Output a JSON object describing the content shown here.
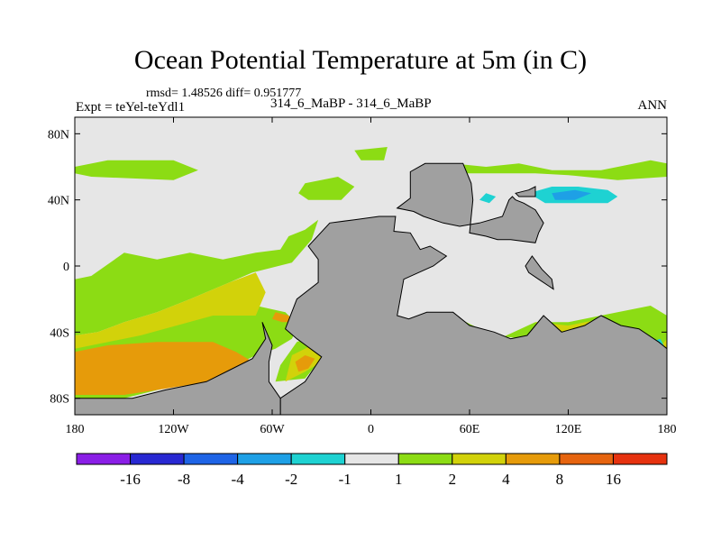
{
  "chart_data": {
    "type": "contour_map",
    "title": "Ocean Potential Temperature at 5m (in C)",
    "stats_text": "rmsd= 1.48526 diff= 0.951777",
    "left_label": "Expt = teYel-teYdl1",
    "center_label": "314_6_MaBP - 314_6_MaBP",
    "right_label": "ANN",
    "x_ticks": [
      {
        "value": -180,
        "label": "180"
      },
      {
        "value": -120,
        "label": "120W"
      },
      {
        "value": -60,
        "label": "60W"
      },
      {
        "value": 0,
        "label": "0"
      },
      {
        "value": 60,
        "label": "60E"
      },
      {
        "value": 120,
        "label": "120E"
      },
      {
        "value": 180,
        "label": "180"
      }
    ],
    "y_ticks": [
      {
        "value": 80,
        "label": "80N"
      },
      {
        "value": 40,
        "label": "40N"
      },
      {
        "value": 0,
        "label": "0"
      },
      {
        "value": -40,
        "label": "40S"
      },
      {
        "value": -80,
        "label": "80S"
      }
    ],
    "xlim": [
      -180,
      180
    ],
    "ylim": [
      -90,
      90
    ],
    "levels": [
      -16,
      -8,
      -4,
      -2,
      -1,
      1,
      2,
      4,
      8,
      16
    ],
    "colorbar_labels": [
      "-16",
      "-8",
      "-4",
      "-2",
      "-1",
      "1",
      "2",
      "4",
      "8",
      "16"
    ],
    "colors": [
      "#8a1ee6",
      "#2828d2",
      "#1e64e6",
      "#1ea0e6",
      "#1ed2d2",
      "#e6e6e6",
      "#8cdc14",
      "#d2d20a",
      "#e69b0a",
      "#e6640f",
      "#e6320f"
    ],
    "land_color": "#a0a0a0",
    "ocean_bg_color": "#e6e6e6",
    "land": [
      [
        [
          -55,
          -93
        ],
        [
          -55,
          -80
        ],
        [
          -40,
          -70
        ],
        [
          -30,
          -55
        ],
        [
          -45,
          -44
        ],
        [
          -52,
          -38
        ],
        [
          -45,
          -20
        ],
        [
          -32,
          -10
        ],
        [
          -32,
          4
        ],
        [
          -38,
          12
        ],
        [
          -25,
          26
        ],
        [
          -10,
          28
        ],
        [
          5,
          30
        ],
        [
          15,
          30
        ],
        [
          14,
          21
        ],
        [
          24,
          20
        ],
        [
          30,
          10
        ],
        [
          36,
          12
        ],
        [
          46,
          6
        ],
        [
          38,
          0
        ],
        [
          20,
          -8
        ],
        [
          16,
          -30
        ],
        [
          23,
          -32
        ],
        [
          34,
          -28
        ],
        [
          50,
          -28
        ],
        [
          60,
          -36
        ],
        [
          75,
          -40
        ],
        [
          85,
          -44
        ],
        [
          95,
          -42
        ],
        [
          105,
          -30
        ],
        [
          116,
          -40
        ],
        [
          130,
          -36
        ],
        [
          140,
          -30
        ],
        [
          152,
          -36
        ],
        [
          163,
          -38
        ],
        [
          175,
          -46
        ],
        [
          180,
          -50
        ],
        [
          180,
          -93
        ]
      ],
      [
        [
          16,
          35
        ],
        [
          24,
          41
        ],
        [
          24,
          57
        ],
        [
          33,
          62
        ],
        [
          44,
          62
        ],
        [
          56,
          62
        ],
        [
          61,
          50
        ],
        [
          62,
          40
        ],
        [
          60,
          20
        ],
        [
          70,
          18
        ],
        [
          77,
          16
        ],
        [
          85,
          16
        ],
        [
          100,
          14
        ],
        [
          102,
          20
        ],
        [
          105,
          26
        ],
        [
          100,
          34
        ],
        [
          93,
          38
        ],
        [
          88,
          40
        ],
        [
          86,
          42
        ],
        [
          84,
          40
        ],
        [
          80,
          30
        ],
        [
          66,
          26
        ],
        [
          54,
          24
        ],
        [
          44,
          26
        ],
        [
          32,
          30
        ],
        [
          26,
          33
        ]
      ],
      [
        [
          88,
          44
        ],
        [
          96,
          46
        ],
        [
          100,
          48
        ],
        [
          100,
          42
        ],
        [
          90,
          42
        ]
      ],
      [
        [
          94,
          0
        ],
        [
          98,
          6
        ],
        [
          104,
          -2
        ],
        [
          110,
          -8
        ],
        [
          111,
          -14
        ],
        [
          108,
          -12
        ],
        [
          102,
          -8
        ],
        [
          96,
          -4
        ]
      ],
      [
        [
          -66,
          -34
        ],
        [
          -64,
          -44
        ],
        [
          -72,
          -56
        ],
        [
          -86,
          -63
        ],
        [
          -100,
          -70
        ],
        [
          -125,
          -75
        ],
        [
          -145,
          -80
        ],
        [
          -180,
          -80
        ],
        [
          -180,
          -93
        ],
        [
          -55,
          -93
        ],
        [
          -55,
          -80
        ],
        [
          -62,
          -70
        ],
        [
          -62,
          -58
        ],
        [
          -60,
          -48
        ]
      ]
    ],
    "contours": [
      {
        "bin": 6,
        "points": [
          [
            -180,
            60
          ],
          [
            -160,
            64
          ],
          [
            -120,
            64
          ],
          [
            -105,
            58
          ],
          [
            -120,
            52
          ],
          [
            -170,
            54
          ],
          [
            -180,
            56
          ]
        ]
      },
      {
        "bin": 6,
        "points": [
          [
            -40,
            50
          ],
          [
            -20,
            54
          ],
          [
            -10,
            48
          ],
          [
            -18,
            40
          ],
          [
            -38,
            40
          ],
          [
            -44,
            44
          ]
        ]
      },
      {
        "bin": 6,
        "points": [
          [
            -180,
            -8
          ],
          [
            -170,
            -6
          ],
          [
            -150,
            8
          ],
          [
            -130,
            4
          ],
          [
            -110,
            8
          ],
          [
            -90,
            4
          ],
          [
            -70,
            8
          ],
          [
            -55,
            10
          ],
          [
            -50,
            18
          ],
          [
            -40,
            22
          ],
          [
            -32,
            28
          ],
          [
            -36,
            16
          ],
          [
            -48,
            2
          ],
          [
            -72,
            -4
          ],
          [
            -86,
            -10
          ],
          [
            -110,
            -20
          ],
          [
            -130,
            -28
          ],
          [
            -150,
            -34
          ],
          [
            -166,
            -40
          ],
          [
            -180,
            -42
          ]
        ]
      },
      {
        "bin": 6,
        "points": [
          [
            -180,
            -48
          ],
          [
            -140,
            -40
          ],
          [
            -96,
            -28
          ],
          [
            -70,
            -24
          ],
          [
            -52,
            -28
          ],
          [
            -44,
            -36
          ],
          [
            -48,
            -44
          ],
          [
            -58,
            -50
          ],
          [
            -70,
            -54
          ],
          [
            -90,
            -64
          ],
          [
            -118,
            -72
          ],
          [
            -150,
            -80
          ],
          [
            -180,
            -80
          ]
        ]
      },
      {
        "bin": 6,
        "points": [
          [
            -58,
            -70
          ],
          [
            -40,
            -68
          ],
          [
            -30,
            -56
          ],
          [
            -20,
            -50
          ],
          [
            -18,
            -42
          ],
          [
            -30,
            -40
          ],
          [
            -45,
            -46
          ],
          [
            -55,
            -60
          ]
        ]
      },
      {
        "bin": 6,
        "points": [
          [
            20,
            -34
          ],
          [
            40,
            -34
          ],
          [
            60,
            -38
          ],
          [
            78,
            -44
          ],
          [
            100,
            -34
          ],
          [
            120,
            -34
          ],
          [
            150,
            -28
          ],
          [
            170,
            -24
          ],
          [
            180,
            -30
          ],
          [
            180,
            -52
          ],
          [
            165,
            -40
          ],
          [
            150,
            -38
          ],
          [
            130,
            -38
          ],
          [
            116,
            -42
          ],
          [
            104,
            -32
          ],
          [
            94,
            -44
          ],
          [
            74,
            -42
          ],
          [
            50,
            -30
          ],
          [
            30,
            -30
          ]
        ]
      },
      {
        "bin": 6,
        "points": [
          [
            50,
            62
          ],
          [
            70,
            60
          ],
          [
            90,
            62
          ],
          [
            110,
            58
          ],
          [
            140,
            58
          ],
          [
            170,
            64
          ],
          [
            180,
            62
          ],
          [
            180,
            54
          ],
          [
            150,
            52
          ],
          [
            120,
            55
          ],
          [
            100,
            56
          ],
          [
            74,
            56
          ],
          [
            56,
            56
          ]
        ]
      },
      {
        "bin": 6,
        "points": [
          [
            -10,
            70
          ],
          [
            10,
            72
          ],
          [
            8,
            64
          ],
          [
            -6,
            64
          ]
        ]
      },
      {
        "bin": 7,
        "points": [
          [
            -180,
            -42
          ],
          [
            -166,
            -40
          ],
          [
            -150,
            -34
          ],
          [
            -130,
            -28
          ],
          [
            -110,
            -20
          ],
          [
            -86,
            -10
          ],
          [
            -70,
            -4
          ],
          [
            -64,
            -16
          ],
          [
            -70,
            -30
          ],
          [
            -96,
            -30
          ],
          [
            -140,
            -42
          ],
          [
            -180,
            -50
          ]
        ]
      },
      {
        "bin": 7,
        "points": [
          [
            100,
            -34
          ],
          [
            120,
            -36
          ],
          [
            140,
            -32
          ],
          [
            150,
            -36
          ],
          [
            145,
            -42
          ],
          [
            130,
            -42
          ],
          [
            116,
            -44
          ],
          [
            104,
            -40
          ]
        ]
      },
      {
        "bin": 7,
        "points": [
          [
            175,
            -50
          ],
          [
            180,
            -44
          ],
          [
            180,
            -66
          ],
          [
            176,
            -60
          ]
        ]
      },
      {
        "bin": 7,
        "points": [
          [
            -52,
            -70
          ],
          [
            -40,
            -64
          ],
          [
            -30,
            -58
          ],
          [
            -26,
            -50
          ],
          [
            -36,
            -48
          ],
          [
            -48,
            -54
          ]
        ]
      },
      {
        "bin": 8,
        "points": [
          [
            -180,
            -52
          ],
          [
            -160,
            -48
          ],
          [
            -130,
            -46
          ],
          [
            -110,
            -46
          ],
          [
            -96,
            -46
          ],
          [
            -82,
            -52
          ],
          [
            -72,
            -58
          ],
          [
            -80,
            -66
          ],
          [
            -98,
            -70
          ],
          [
            -124,
            -74
          ],
          [
            -150,
            -78
          ],
          [
            -180,
            -78
          ]
        ]
      },
      {
        "bin": 8,
        "points": [
          [
            -46,
            -58
          ],
          [
            -40,
            -54
          ],
          [
            -34,
            -56
          ],
          [
            -38,
            -62
          ],
          [
            -44,
            -64
          ]
        ]
      },
      {
        "bin": 8,
        "points": [
          [
            -58,
            -28
          ],
          [
            -50,
            -30
          ],
          [
            -48,
            -34
          ],
          [
            -54,
            -34
          ],
          [
            -60,
            -32
          ]
        ]
      },
      {
        "bin": 8,
        "points": [
          [
            108,
            -40
          ],
          [
            118,
            -40
          ],
          [
            124,
            -44
          ],
          [
            116,
            -46
          ],
          [
            108,
            -44
          ]
        ]
      },
      {
        "bin": 9,
        "points": [
          [
            178,
            -66
          ],
          [
            180,
            -62
          ],
          [
            180,
            -76
          ],
          [
            177,
            -72
          ]
        ]
      },
      {
        "bin": 4,
        "points": [
          [
            66,
            40
          ],
          [
            70,
            44
          ],
          [
            76,
            42
          ],
          [
            72,
            38
          ]
        ]
      },
      {
        "bin": 4,
        "points": [
          [
            96,
            44
          ],
          [
            110,
            48
          ],
          [
            126,
            48
          ],
          [
            144,
            46
          ],
          [
            150,
            42
          ],
          [
            144,
            38
          ],
          [
            124,
            38
          ],
          [
            106,
            38
          ]
        ]
      },
      {
        "bin": 4,
        "points": [
          [
            170,
            -46
          ],
          [
            176,
            -44
          ],
          [
            178,
            -48
          ],
          [
            172,
            -50
          ]
        ]
      },
      {
        "bin": 3,
        "points": [
          [
            110,
            44
          ],
          [
            124,
            46
          ],
          [
            134,
            44
          ],
          [
            124,
            40
          ],
          [
            112,
            40
          ]
        ]
      }
    ]
  }
}
